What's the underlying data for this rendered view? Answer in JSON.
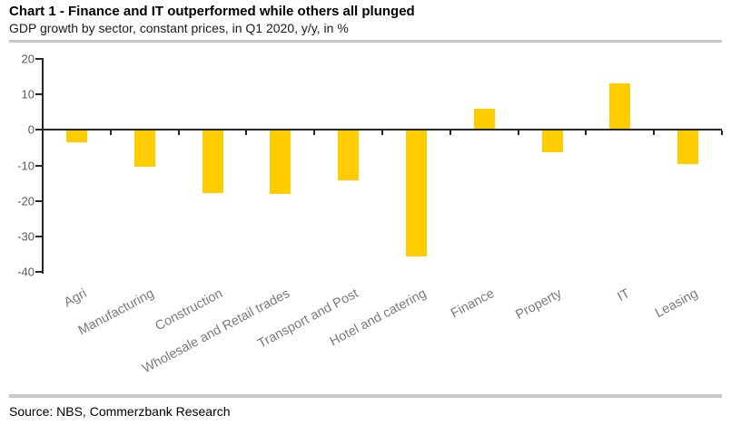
{
  "chart_data": {
    "type": "bar",
    "title": "Chart 1 - Finance and IT outperformed while others all plunged",
    "subtitle": "GDP growth by sector, constant prices, in Q1 2020, y/y, in %",
    "source": "Source: NBS, Commerzbank Research",
    "categories": [
      "Agri",
      "Manufacturing",
      "Construction",
      "Wholesale and Retail trades",
      "Transport and Post",
      "Hotel and catering",
      "Finance",
      "Property",
      "IT",
      "Leasing"
    ],
    "values": [
      -3.2,
      -10.2,
      -17.5,
      -17.8,
      -14.0,
      -35.3,
      6.0,
      -6.1,
      13.2,
      -9.4
    ],
    "xlabel": "",
    "ylabel": "",
    "ylim": [
      -40,
      20
    ],
    "yticks": [
      20,
      10,
      0,
      -10,
      -20,
      -30,
      -40
    ],
    "grid": false,
    "legend": "none",
    "bar_color": "#FFCC00",
    "axis_color": "#262626",
    "ytick_label_color": "#595959",
    "xtick_label_color": "#7a7a7a",
    "xtick_label_rotation_deg": -28,
    "divider_color": "#c8c8c8"
  }
}
